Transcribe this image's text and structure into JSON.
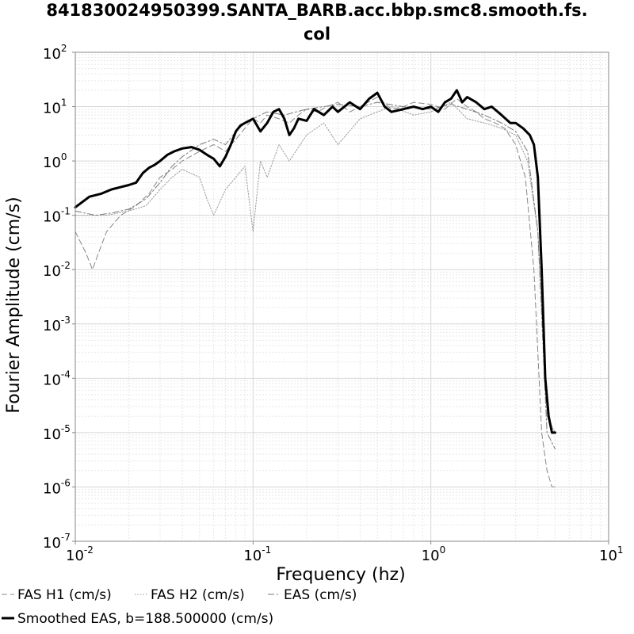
{
  "chart_data": {
    "type": "line",
    "title_line1": "841830024950399.SANTA_BARB.acc.bbp.smc8.smooth.fs.",
    "title_line2": "col",
    "xlabel": "Frequency (hz)",
    "ylabel": "Fourier Amplitude (cm/s)",
    "x_scale": "log",
    "y_scale": "log",
    "xlim": [
      0.01,
      10
    ],
    "ylim": [
      1e-07,
      100
    ],
    "grid": true,
    "legend_position": "bottom",
    "x_ticks": [
      {
        "base": "10",
        "exp": "-2"
      },
      {
        "base": "10",
        "exp": "-1"
      },
      {
        "base": "10",
        "exp": "0"
      },
      {
        "base": "10",
        "exp": "1"
      }
    ],
    "y_ticks": [
      {
        "base": "10",
        "exp": "-7"
      },
      {
        "base": "10",
        "exp": "-6"
      },
      {
        "base": "10",
        "exp": "-5"
      },
      {
        "base": "10",
        "exp": "-4"
      },
      {
        "base": "10",
        "exp": "-3"
      },
      {
        "base": "10",
        "exp": "-2"
      },
      {
        "base": "10",
        "exp": "-1"
      },
      {
        "base": "10",
        "exp": "0"
      },
      {
        "base": "10",
        "exp": "1"
      },
      {
        "base": "10",
        "exp": "2"
      }
    ],
    "series": [
      {
        "name": "FAS H1 (cm/s)",
        "color": "#888888",
        "dash": "7,4",
        "width": 1,
        "x": [
          0.01,
          0.0115,
          0.0125,
          0.0135,
          0.015,
          0.018,
          0.022,
          0.026,
          0.03,
          0.035,
          0.04,
          0.05,
          0.06,
          0.07,
          0.08,
          0.09,
          0.1,
          0.11,
          0.12,
          0.14,
          0.16,
          0.18,
          0.2,
          0.23,
          0.26,
          0.3,
          0.35,
          0.4,
          0.5,
          0.6,
          0.7,
          0.8,
          1.0,
          1.2,
          1.4,
          1.6,
          1.8,
          2.0,
          2.3,
          2.6,
          3.0,
          3.4,
          3.8,
          4.2,
          4.5,
          4.8,
          5.0
        ],
        "y": [
          0.05,
          0.02,
          0.01,
          0.02,
          0.05,
          0.1,
          0.15,
          0.25,
          0.5,
          0.7,
          1.0,
          1.5,
          2.0,
          1.5,
          2.5,
          4.0,
          6.0,
          5.0,
          7.0,
          6.0,
          5.0,
          7.0,
          9.0,
          8.0,
          10.0,
          12.0,
          8.0,
          10.0,
          15.0,
          9.0,
          10.0,
          12.0,
          11.0,
          9.0,
          14.0,
          10.0,
          8.0,
          6.0,
          5.0,
          4.0,
          2.0,
          0.5,
          0.01,
          1e-05,
          2e-06,
          1e-06,
          1e-06
        ]
      },
      {
        "name": "FAS H2 (cm/s)",
        "color": "#9a9a9a",
        "dash": "1.5,2",
        "width": 1,
        "x": [
          0.01,
          0.015,
          0.02,
          0.025,
          0.03,
          0.035,
          0.04,
          0.05,
          0.055,
          0.06,
          0.07,
          0.08,
          0.09,
          0.1,
          0.11,
          0.12,
          0.14,
          0.16,
          0.2,
          0.25,
          0.3,
          0.4,
          0.5,
          0.6,
          0.8,
          1.0,
          1.3,
          1.6,
          2.0,
          2.5,
          3.0,
          3.5,
          4.0,
          4.5,
          5.0
        ],
        "y": [
          0.1,
          0.1,
          0.12,
          0.15,
          0.3,
          0.5,
          0.7,
          0.5,
          0.2,
          0.1,
          0.3,
          0.5,
          0.8,
          0.05,
          1.0,
          0.5,
          2.0,
          1.0,
          3.0,
          5.0,
          2.0,
          6.0,
          8.0,
          10.0,
          7.0,
          8.0,
          12.0,
          6.0,
          5.0,
          4.0,
          3.0,
          1.0,
          0.05,
          2e-05,
          1e-05
        ]
      },
      {
        "name": "EAS (cm/s)",
        "color": "#777777",
        "dash": "8,3,2,3",
        "width": 1,
        "x": [
          0.01,
          0.013,
          0.016,
          0.02,
          0.025,
          0.03,
          0.035,
          0.04,
          0.05,
          0.06,
          0.07,
          0.08,
          0.09,
          0.1,
          0.12,
          0.15,
          0.2,
          0.25,
          0.3,
          0.4,
          0.5,
          0.7,
          1.0,
          1.3,
          1.6,
          2.0,
          2.5,
          3.0,
          3.5,
          4.0,
          4.5,
          5.0
        ],
        "y": [
          0.12,
          0.1,
          0.11,
          0.13,
          0.2,
          0.4,
          0.8,
          1.2,
          2.0,
          2.5,
          2.0,
          3.5,
          5.0,
          6.0,
          8.0,
          7.0,
          9.0,
          10.0,
          11.0,
          10.0,
          12.0,
          10.0,
          9.0,
          11.0,
          9.0,
          7.0,
          5.0,
          3.5,
          1.5,
          0.05,
          1e-05,
          5e-06
        ]
      },
      {
        "name": "Smoothed EAS, b=188.500000 (cm/s)",
        "color": "#000000",
        "dash": "",
        "width": 3,
        "x": [
          0.01,
          0.012,
          0.014,
          0.016,
          0.018,
          0.02,
          0.022,
          0.024,
          0.026,
          0.028,
          0.03,
          0.033,
          0.036,
          0.04,
          0.045,
          0.05,
          0.055,
          0.06,
          0.065,
          0.07,
          0.075,
          0.08,
          0.085,
          0.09,
          0.1,
          0.11,
          0.12,
          0.13,
          0.14,
          0.15,
          0.16,
          0.17,
          0.18,
          0.2,
          0.22,
          0.25,
          0.28,
          0.3,
          0.35,
          0.4,
          0.45,
          0.5,
          0.55,
          0.6,
          0.7,
          0.8,
          0.9,
          1.0,
          1.1,
          1.2,
          1.3,
          1.4,
          1.5,
          1.6,
          1.8,
          2.0,
          2.2,
          2.5,
          2.8,
          3.0,
          3.3,
          3.6,
          3.8,
          4.0,
          4.2,
          4.4,
          4.6,
          4.8,
          5.0
        ],
        "y": [
          0.14,
          0.22,
          0.25,
          0.3,
          0.33,
          0.36,
          0.4,
          0.6,
          0.75,
          0.85,
          1.0,
          1.3,
          1.5,
          1.7,
          1.8,
          1.6,
          1.3,
          1.1,
          0.8,
          1.2,
          2.0,
          3.5,
          4.5,
          5.0,
          6.0,
          3.5,
          5.0,
          8.0,
          9.0,
          6.0,
          3.0,
          4.0,
          6.0,
          5.5,
          9.0,
          7.0,
          10.0,
          8.0,
          12.0,
          9.0,
          14.0,
          18.0,
          10.0,
          8.0,
          9.0,
          10.0,
          9.0,
          10.0,
          8.0,
          12.0,
          14.0,
          20.0,
          12.0,
          15.0,
          12.0,
          9.0,
          10.0,
          7.0,
          5.0,
          5.0,
          4.0,
          3.0,
          2.0,
          0.5,
          0.01,
          0.0001,
          2e-05,
          1e-05,
          1e-05
        ]
      }
    ]
  }
}
